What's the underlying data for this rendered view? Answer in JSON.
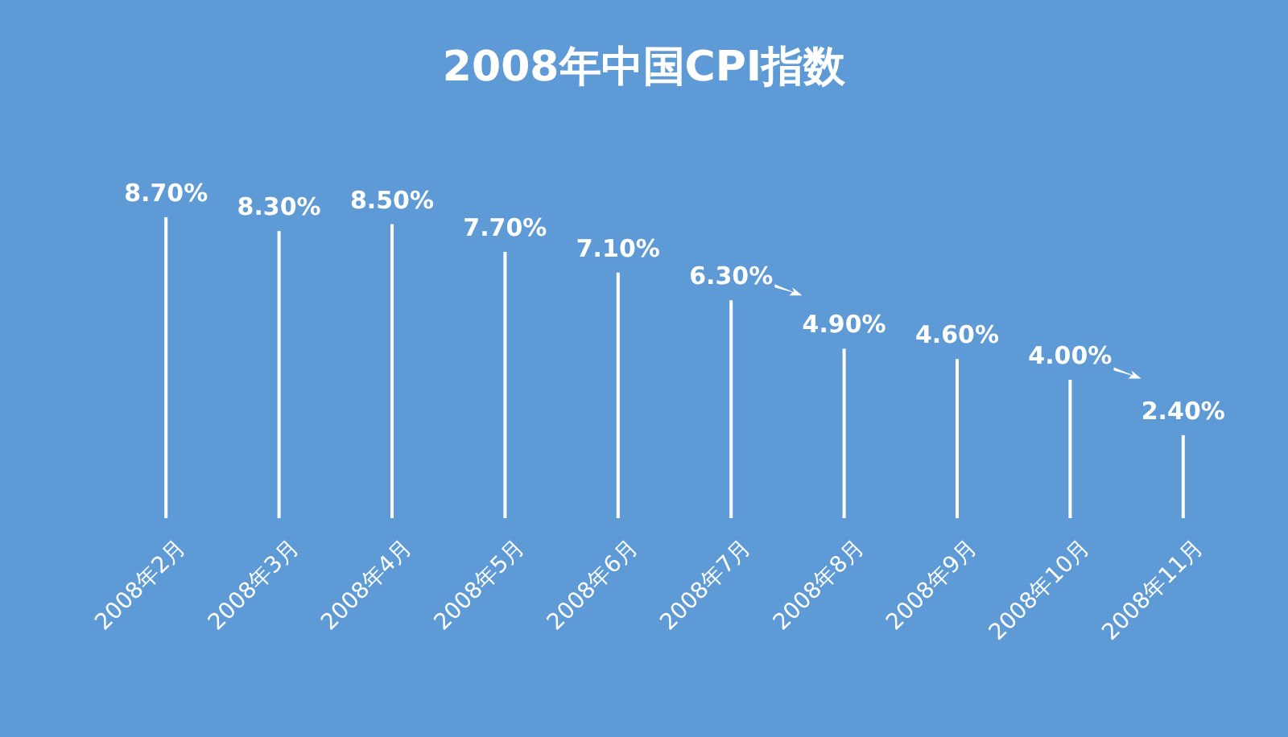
{
  "chart_data": {
    "type": "bar",
    "title": "2008年中国CPI指数",
    "categories": [
      "2008年2月",
      "2008年3月",
      "2008年4月",
      "2008年5月",
      "2008年6月",
      "2008年7月",
      "2008年8月",
      "2008年9月",
      "2008年10月",
      "2008年11月"
    ],
    "values": [
      8.7,
      8.3,
      8.5,
      7.7,
      7.1,
      6.3,
      4.9,
      4.6,
      4.0,
      2.4
    ],
    "value_labels": [
      "8.70%",
      "8.30%",
      "8.50%",
      "7.70%",
      "7.10%",
      "6.30%",
      "4.90%",
      "4.60%",
      "4.00%",
      "2.40%"
    ],
    "color": "#ffffff",
    "grid": false
  }
}
